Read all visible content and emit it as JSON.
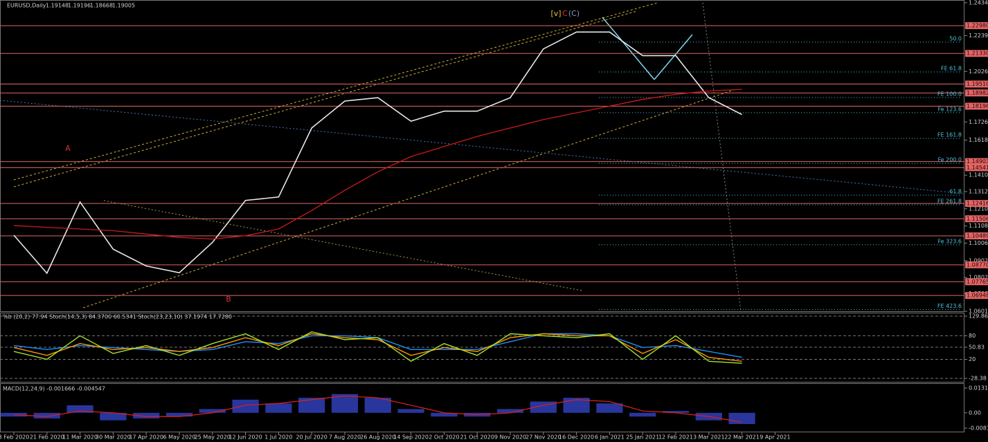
{
  "chart_data": [
    {
      "type": "line",
      "title": "EURUSD,Daily",
      "quote": [
        1.19148,
        1.19196,
        1.18668,
        1.19005
      ],
      "categories": [
        "3 Feb 2020",
        "21 Feb 2020",
        "11 Mar 2020",
        "30 Mar 2020",
        "17 Apr 2020",
        "6 May 2020",
        "25 May 2020",
        "12 Jun 2020",
        "1 Jul 2020",
        "20 Jul 2020",
        "7 Aug 2020",
        "26 Aug 2020",
        "14 Sep 2020",
        "2 Oct 2020",
        "21 Oct 2020",
        "9 Nov 2020",
        "27 Nov 2020",
        "16 Dec 2020",
        "6 Jan 2021",
        "25 Jan 2021",
        "12 Feb 2021",
        "3 Mar 2021",
        "22 Mar 2021",
        "9 Apr 2021"
      ],
      "series": [
        {
          "color": "#e8e8e8",
          "values": [
            1.1053,
            1.0827,
            1.125,
            1.097,
            1.087,
            1.083,
            1.101,
            1.126,
            1.128,
            1.169,
            1.185,
            1.187,
            1.173,
            1.179,
            1.179,
            1.187,
            1.216,
            1.226,
            1.226,
            1.212,
            1.212,
            1.187,
            1.177,
            null
          ]
        },
        {
          "color": "#cc1a1a",
          "values": [
            1.111,
            1.11,
            1.109,
            1.108,
            1.106,
            1.104,
            1.103,
            1.105,
            1.109,
            1.12,
            1.132,
            1.143,
            1.152,
            1.158,
            1.164,
            1.169,
            1.174,
            1.178,
            1.182,
            1.186,
            1.189,
            1.191,
            1.192,
            null
          ]
        }
      ],
      "ylim": [
        1.0601,
        1.2434
      ],
      "yticks": [
        {
          "value": 1.2434,
          "label": "1.24340"
        },
        {
          "value": 1.2239,
          "label": "1.22390"
        },
        {
          "value": 1.2026,
          "label": "1.20260"
        },
        {
          "value": 1.1726,
          "label": "1.17260"
        },
        {
          "value": 1.1618,
          "label": "1.16180"
        },
        {
          "value": 1.141,
          "label": "1.14100"
        },
        {
          "value": 1.1312,
          "label": "1.13120"
        },
        {
          "value": 1.121,
          "label": "1.12100"
        },
        {
          "value": 1.1108,
          "label": "1.11080"
        },
        {
          "value": 1.1006,
          "label": "1.10060"
        },
        {
          "value": 1.0902,
          "label": "1.09020"
        },
        {
          "value": 1.0802,
          "label": "1.08020"
        },
        {
          "value": 1.0706,
          "label": "1.07060"
        },
        {
          "value": 1.0601,
          "label": "1.06010"
        }
      ],
      "levels": [
        {
          "value": 1.2298,
          "label": "1.22980"
        },
        {
          "value": 1.2133,
          "label": "1.21330"
        },
        {
          "value": 1.1951,
          "label": "1.19510"
        },
        {
          "value": 1.18982,
          "label": "1.18982"
        },
        {
          "value": 1.18196,
          "label": "1.18196"
        },
        {
          "value": 1.14903,
          "label": "1.14903"
        },
        {
          "value": 1.14541,
          "label": "1.14541"
        },
        {
          "value": 1.12416,
          "label": "1.12416"
        },
        {
          "value": 1.11506,
          "label": "1.11506"
        },
        {
          "value": 1.10489,
          "label": "1.10489"
        },
        {
          "value": 1.0877,
          "label": "1.08770"
        },
        {
          "value": 1.07765,
          "label": "1.07765"
        },
        {
          "value": 1.06948,
          "label": "1.06948"
        }
      ],
      "level_color": "#e06666",
      "fib_color": "#4fc3d9",
      "fibs": [
        {
          "label": "50.0",
          "price": 1.22
        },
        {
          "label": "FE 61.8",
          "price": 1.2023
        },
        {
          "label": "FE 100.0",
          "price": 1.1871
        },
        {
          "label": "Fe 123.6",
          "price": 1.1781
        },
        {
          "label": "FE 161.8",
          "price": 1.1628
        },
        {
          "label": "Fe 200.0",
          "price": 1.148
        },
        {
          "label": "61.8",
          "price": 1.1291
        },
        {
          "label": "FE 261.8",
          "price": 1.1234
        },
        {
          "label": "Fe 323.6",
          "price": 1.0996
        },
        {
          "label": "FE 423.6",
          "price": 1.0612
        }
      ],
      "waves": [
        {
          "label": "A",
          "price": 1.1567,
          "color": "#e03030"
        },
        {
          "label": "B",
          "price": 1.0671,
          "color": "#e03030"
        },
        {
          "label": "C",
          "price": 1.2368,
          "color": "#e03030"
        },
        {
          "label": "(C)",
          "price": 1.2368,
          "color": "#8090c0"
        },
        {
          "label": "[v]",
          "price": 1.2368,
          "color": "#e0c040"
        }
      ]
    },
    {
      "type": "line",
      "title": "%b (20,2) 77.94  Stoch(14,5,3) 84.3700 60.5341  Stoch(23,23,10) 37.1974 17.7280",
      "series": [
        {
          "color": "#1e90ff",
          "values": [
            55,
            45,
            55,
            50,
            45,
            40,
            45,
            65,
            60,
            80,
            80,
            75,
            45,
            45,
            45,
            65,
            85,
            85,
            80,
            50,
            55,
            40,
            25,
            null
          ]
        },
        {
          "color": "#ff9900",
          "values": [
            50,
            30,
            60,
            45,
            50,
            40,
            50,
            75,
            55,
            85,
            75,
            70,
            30,
            50,
            40,
            75,
            85,
            80,
            80,
            35,
            70,
            25,
            15,
            null
          ]
        },
        {
          "color": "#a6e22e",
          "values": [
            40,
            20,
            80,
            35,
            55,
            30,
            60,
            85,
            45,
            90,
            70,
            75,
            15,
            60,
            30,
            85,
            80,
            75,
            85,
            20,
            80,
            15,
            10,
            null
          ]
        }
      ],
      "ylim": [
        -28.38,
        129.86
      ],
      "yticks": [
        129.86,
        80,
        50.83,
        20,
        -28.38
      ]
    },
    {
      "type": "bar",
      "title": "MACD(12,24,9) -0.001666 -0.004547",
      "values": [
        -0.002,
        -0.003,
        0.004,
        -0.004,
        -0.003,
        -0.002,
        0.002,
        0.007,
        0.005,
        0.008,
        0.01,
        0.008,
        0.002,
        -0.002,
        -0.002,
        0.002,
        0.006,
        0.008,
        0.005,
        -0.002,
        0.001,
        -0.004,
        -0.006,
        null
      ],
      "color": "#2f3fb8",
      "signal": {
        "color": "#d42020",
        "values": [
          -0.001,
          -0.002,
          0.001,
          0.0,
          -0.002,
          -0.002,
          0.0,
          0.004,
          0.005,
          0.007,
          0.009,
          0.008,
          0.004,
          0.0,
          -0.001,
          0.0,
          0.004,
          0.007,
          0.006,
          0.001,
          0.0,
          -0.002,
          -0.005,
          null
        ]
      },
      "ylim": [
        -0.008179,
        0.013189
      ],
      "yticks": [
        0.013189,
        {
          "value": 0,
          "label": "0.00"
        },
        -0.008179
      ]
    }
  ]
}
